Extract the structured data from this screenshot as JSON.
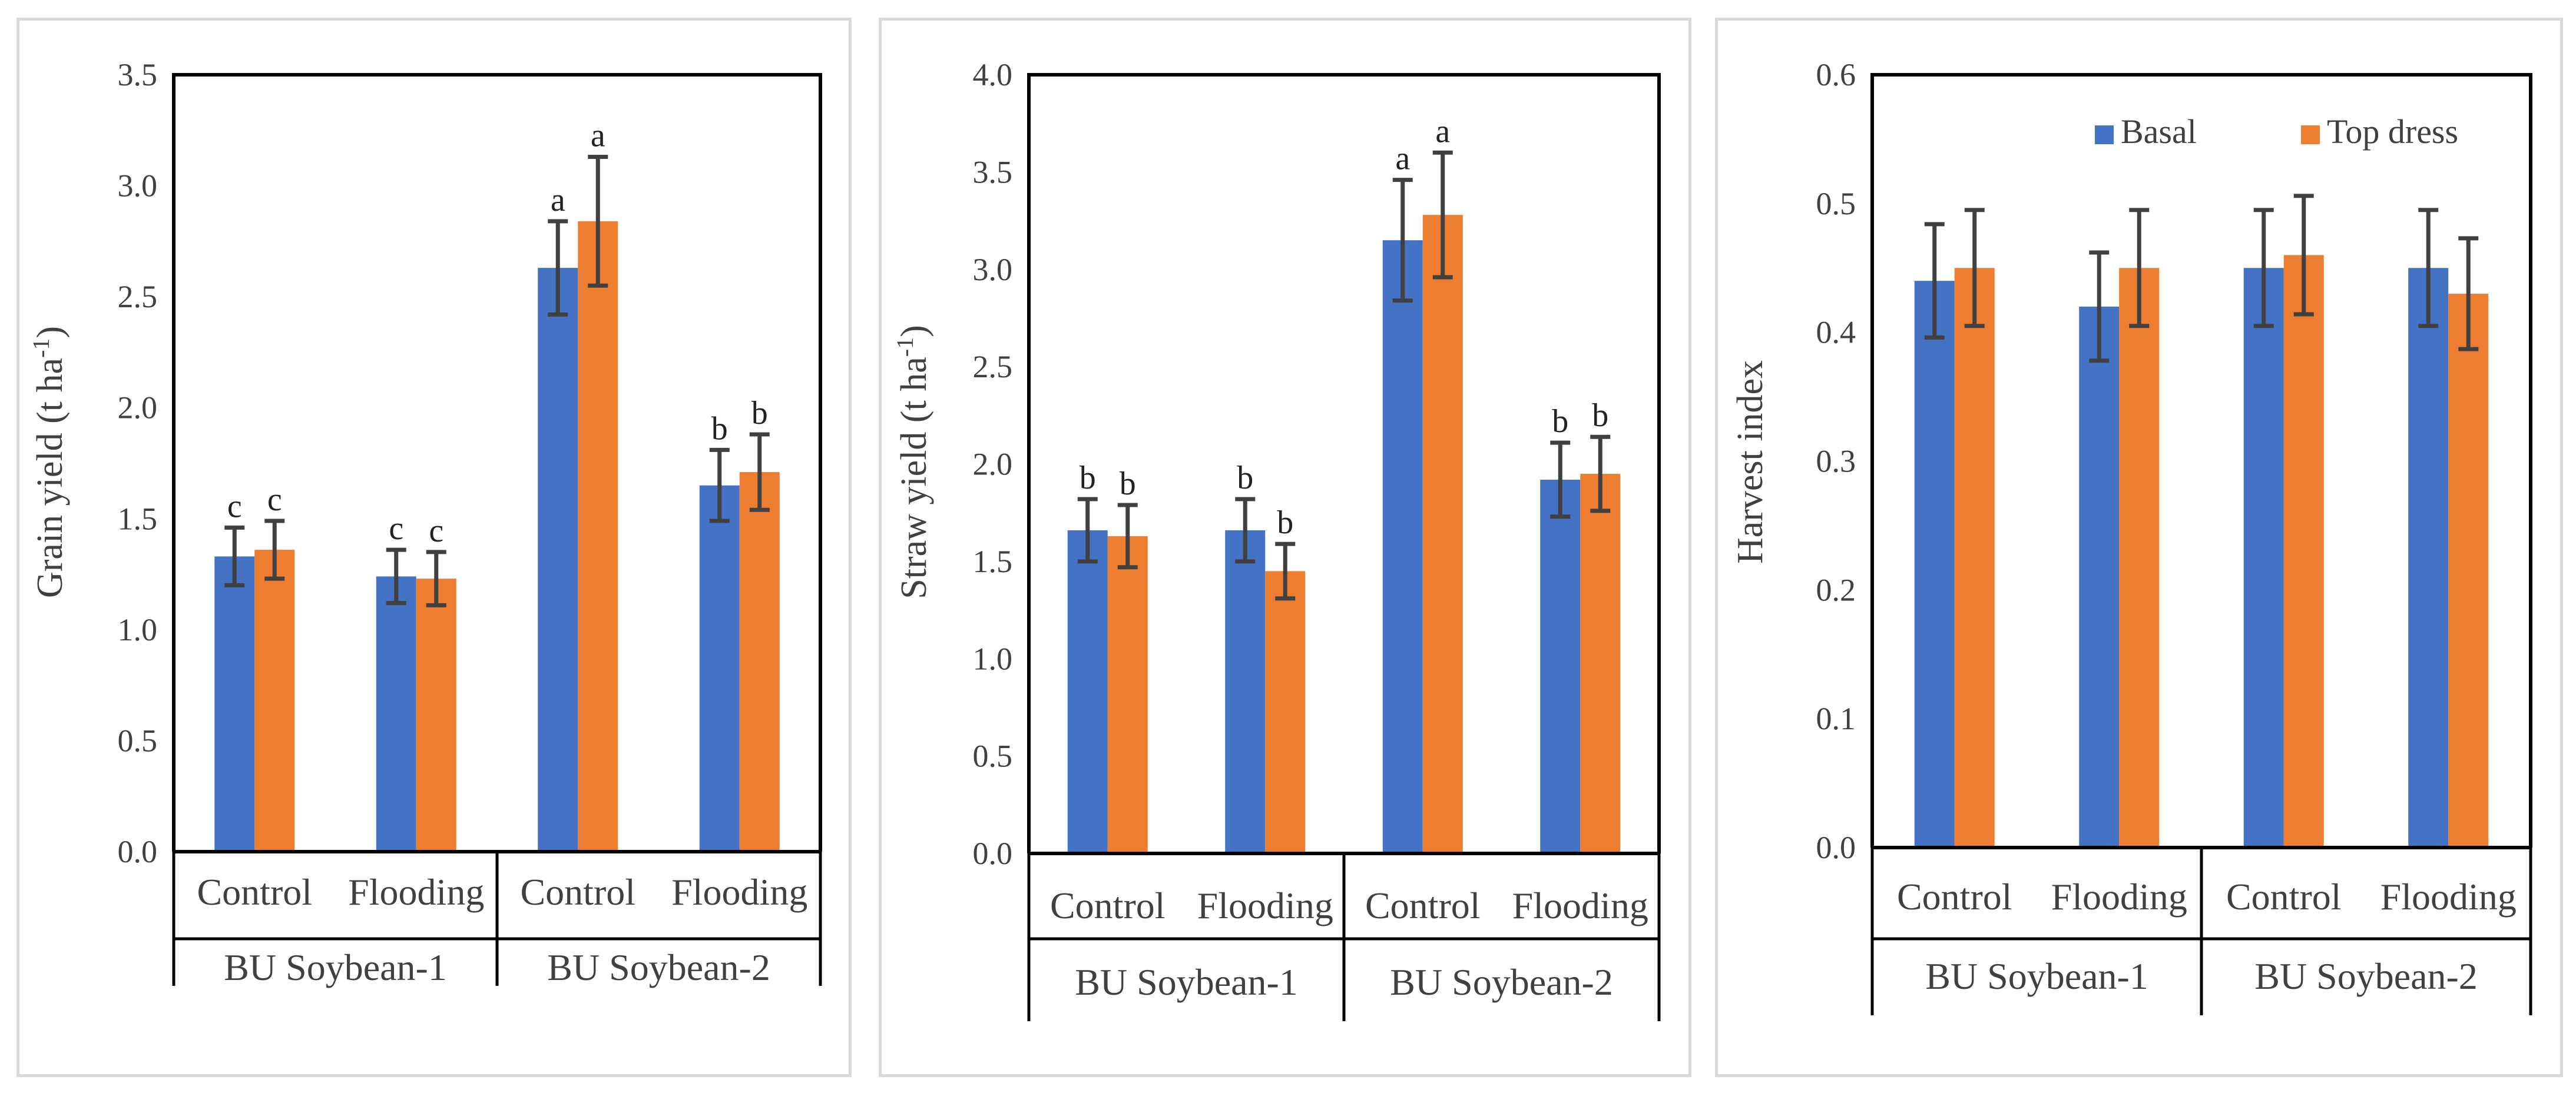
{
  "colors": {
    "basal": "#4472C4",
    "top_dress": "#ED7D31",
    "axis": "#000000",
    "error_bar": "#404040"
  },
  "legend": {
    "placement": "top-right",
    "entries": [
      "Basal",
      "Top dress"
    ]
  },
  "chart_data": [
    {
      "type": "bar",
      "title": "",
      "ylabel_main": "Grain yield (t ha",
      "ylabel_sup": "-1",
      "ylabel_end": ")",
      "ylim": [
        0,
        3.5
      ],
      "yticks": [
        "0.0",
        "0.5",
        "1.0",
        "1.5",
        "2.0",
        "2.5",
        "3.0",
        "3.5"
      ],
      "categories": [
        "Control",
        "Flooding",
        "Control",
        "Flooding"
      ],
      "groups": [
        "BU Soybean-1",
        "BU Soybean-2"
      ],
      "series": [
        {
          "name": "Basal",
          "values": [
            1.33,
            1.24,
            2.63,
            1.65
          ],
          "errors": [
            0.13,
            0.12,
            0.21,
            0.16
          ],
          "letters": [
            "c",
            "c",
            "a",
            "b"
          ]
        },
        {
          "name": "Top dress",
          "values": [
            1.36,
            1.23,
            2.84,
            1.71
          ],
          "errors": [
            0.13,
            0.12,
            0.29,
            0.17
          ],
          "letters": [
            "c",
            "c",
            "a",
            "b"
          ]
        }
      ]
    },
    {
      "type": "bar",
      "title": "",
      "ylabel_main": "Straw yield (t ha",
      "ylabel_sup": "-1",
      "ylabel_end": ")",
      "ylim": [
        0,
        4.0
      ],
      "yticks": [
        "0.0",
        "0.5",
        "1.0",
        "1.5",
        "2.0",
        "2.5",
        "3.0",
        "3.5",
        "4.0"
      ],
      "categories": [
        "Control",
        "Flooding",
        "Control",
        "Flooding"
      ],
      "groups": [
        "BU Soybean-1",
        "BU Soybean-2"
      ],
      "series": [
        {
          "name": "Basal",
          "values": [
            1.66,
            1.66,
            3.15,
            1.92
          ],
          "errors": [
            0.16,
            0.16,
            0.31,
            0.19
          ],
          "letters": [
            "b",
            "b",
            "a",
            "b"
          ]
        },
        {
          "name": "Top dress",
          "values": [
            1.63,
            1.45,
            3.28,
            1.95
          ],
          "errors": [
            0.16,
            0.14,
            0.32,
            0.19
          ],
          "letters": [
            "b",
            "b",
            "a",
            "b"
          ]
        }
      ]
    },
    {
      "type": "bar",
      "title": "",
      "ylabel_main": "Harvest index",
      "ylabel_sup": "",
      "ylabel_end": "",
      "ylim": [
        0,
        0.6
      ],
      "yticks": [
        "0.0",
        "0.1",
        "0.2",
        "0.3",
        "0.4",
        "0.5",
        "0.6"
      ],
      "categories": [
        "Control",
        "Flooding",
        "Control",
        "Flooding"
      ],
      "groups": [
        "BU Soybean-1",
        "BU Soybean-2"
      ],
      "series": [
        {
          "name": "Basal",
          "values": [
            0.44,
            0.42,
            0.45,
            0.45
          ],
          "errors": [
            0.044,
            0.042,
            0.045,
            0.045
          ],
          "letters": []
        },
        {
          "name": "Top dress",
          "values": [
            0.45,
            0.45,
            0.46,
            0.43
          ],
          "errors": [
            0.045,
            0.045,
            0.046,
            0.043
          ],
          "letters": []
        }
      ]
    }
  ]
}
